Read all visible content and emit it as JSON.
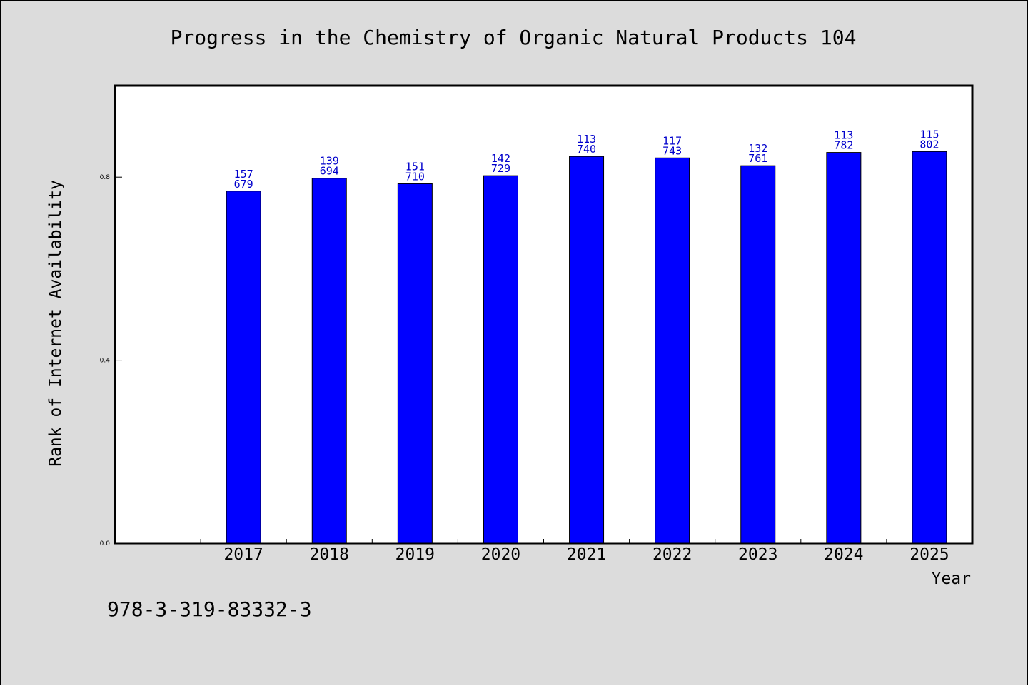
{
  "isbn": "978-3-319-83332-3",
  "colors": {
    "background": "#dcdcdc",
    "plot_background": "#ffffff",
    "bar_fill": "#0000ff",
    "bar_stroke": "#000000",
    "data_label": "#0000cc"
  },
  "chart_data": {
    "type": "bar",
    "title": "Progress in the Chemistry of Organic Natural Products 104",
    "xlabel": "Year",
    "ylabel": "Rank of Internet Availability",
    "categories": [
      "2017",
      "2018",
      "2019",
      "2020",
      "2021",
      "2022",
      "2023",
      "2024",
      "2025"
    ],
    "values": [
      0.7695,
      0.7976,
      0.7856,
      0.8032,
      0.8452,
      0.842,
      0.825,
      0.854,
      0.856
    ],
    "data_labels": [
      [
        "157",
        "679"
      ],
      [
        "139",
        "694"
      ],
      [
        "151",
        "710"
      ],
      [
        "142",
        "729"
      ],
      [
        "113",
        "740"
      ],
      [
        "117",
        "743"
      ],
      [
        "132",
        "761"
      ],
      [
        "113",
        "782"
      ],
      [
        "115",
        "802"
      ]
    ],
    "yticks": [
      {
        "value": 0.0,
        "label": "0.0"
      },
      {
        "value": 0.4,
        "label": "0.4"
      },
      {
        "value": 0.8,
        "label": "0.8"
      }
    ],
    "ylim": [
      0,
      1.0
    ],
    "x_slots": 10,
    "first_category_slot": 1,
    "grid": false,
    "legend": "none"
  }
}
